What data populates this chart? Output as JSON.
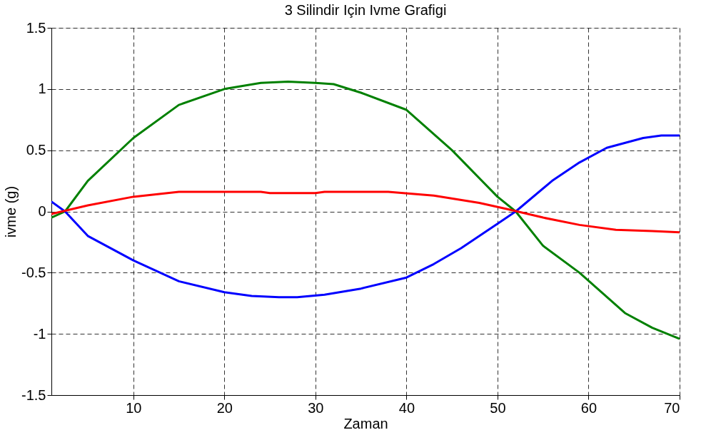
{
  "chart_data": {
    "type": "line",
    "title": "3 Silindir Için Ivme Grafigi",
    "xlabel": "Zaman",
    "ylabel": "ivme (g)",
    "xlim": [
      1,
      70
    ],
    "xticks": [
      10,
      20,
      30,
      40,
      50,
      60,
      70
    ],
    "ylim": [
      -1.5,
      1.5
    ],
    "yticks": [
      -1.5,
      -1,
      -0.5,
      0,
      0.5,
      1,
      1.5
    ],
    "grid": true,
    "line_style": "solid",
    "series": [
      {
        "color": "#008000",
        "x": [
          1,
          2.5,
          5,
          10,
          15,
          20,
          24,
          27,
          30,
          32,
          35,
          40,
          45,
          50,
          52,
          55,
          59,
          64,
          67,
          70
        ],
        "values": [
          -0.05,
          0,
          0.25,
          0.6,
          0.87,
          1.0,
          1.05,
          1.06,
          1.05,
          1.04,
          0.97,
          0.83,
          0.5,
          0.12,
          0,
          -0.28,
          -0.5,
          -0.83,
          -0.95,
          -1.04
        ]
      },
      {
        "color": "#0000ff",
        "x": [
          1,
          2.5,
          5,
          10,
          15,
          20,
          23,
          26,
          28,
          31,
          35,
          40,
          43,
          46,
          50,
          52,
          56,
          59,
          62,
          66,
          68,
          70
        ],
        "values": [
          0.08,
          0,
          -0.2,
          -0.4,
          -0.57,
          -0.66,
          -0.69,
          -0.7,
          -0.7,
          -0.68,
          -0.63,
          -0.54,
          -0.43,
          -0.3,
          -0.1,
          0,
          0.25,
          0.4,
          0.52,
          0.6,
          0.62,
          0.62
        ]
      },
      {
        "color": "#ff0000",
        "x": [
          1,
          5,
          10,
          15,
          20,
          24,
          25,
          30,
          31,
          38,
          43,
          48,
          51,
          55,
          59,
          63,
          67,
          70
        ],
        "values": [
          -0.02,
          0.05,
          0.12,
          0.16,
          0.16,
          0.16,
          0.15,
          0.15,
          0.16,
          0.16,
          0.13,
          0.07,
          0.02,
          -0.05,
          -0.11,
          -0.15,
          -0.16,
          -0.17
        ]
      }
    ]
  }
}
